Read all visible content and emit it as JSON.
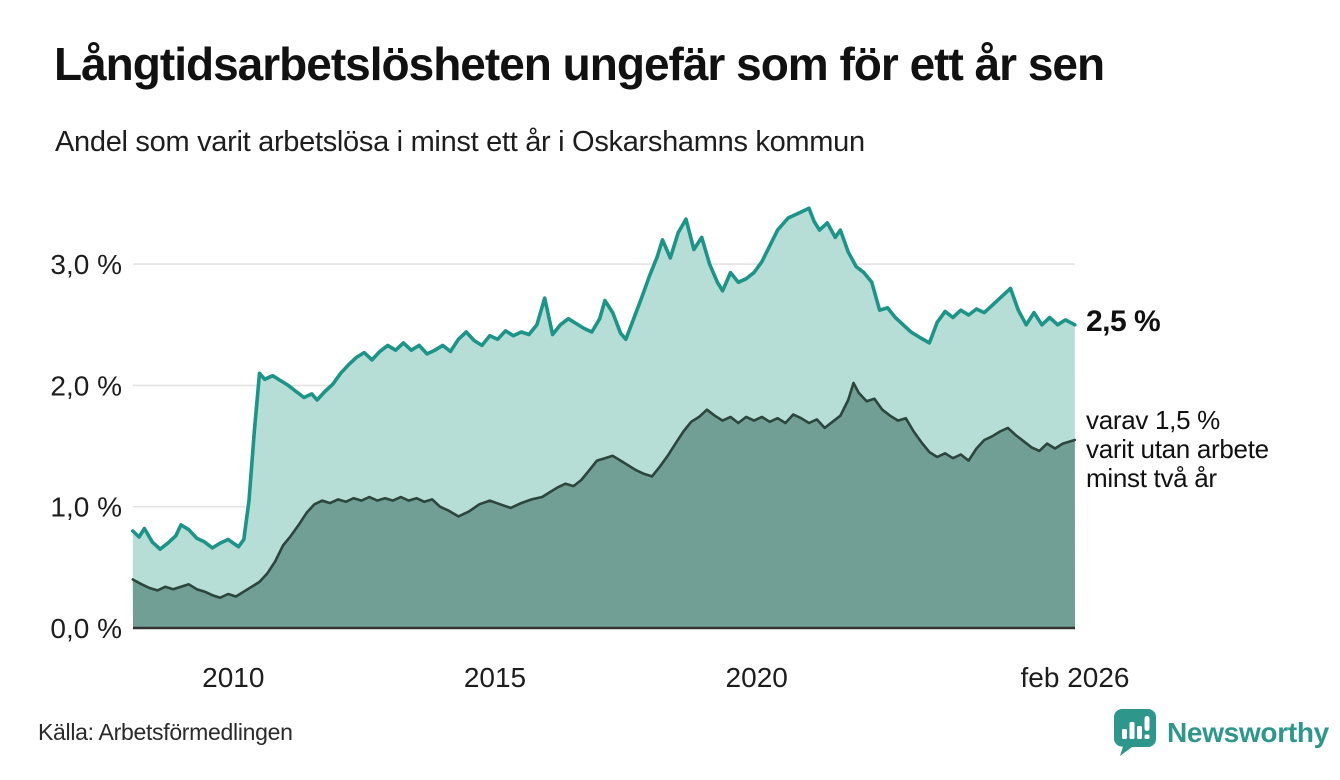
{
  "header": {
    "title": "Långtidsarbetslösheten ungefär som för ett år sen",
    "subtitle": "Andel som varit arbetslösa i minst ett år i Oskarshamns kommun"
  },
  "annotations": {
    "latest_total": "2,5 %",
    "subseries": [
      "varav 1,5 %",
      "varit utan arbete",
      "minst två år"
    ]
  },
  "footer": {
    "source": "Källa: Arbetsförmedlingen",
    "brand": "Newsworthy"
  },
  "colors": {
    "line_total": "#1e9388",
    "fill_total": "#b6ddd6",
    "line_two_years": "#2c463e",
    "fill_two_years": "#719f95",
    "gridline": "#e3e3e3",
    "axis_baseline": "#333333",
    "text": "#111111",
    "brand_teal": "#2e968b"
  },
  "chart_data": {
    "type": "area",
    "title": "Långtidsarbetslösheten ungefär som för ett år sen",
    "subtitle": "Andel som varit arbetslösa i minst ett år i Oskarshamns kommun",
    "unit": "%",
    "x_range": [
      2008.083,
      2026.083
    ],
    "ylim": [
      0,
      3.6
    ],
    "grid": true,
    "legend_position": "none",
    "yticks": [
      {
        "v": 0,
        "label": "0,0 %"
      },
      {
        "v": 1,
        "label": "1,0 %"
      },
      {
        "v": 2,
        "label": "2,0 %"
      },
      {
        "v": 3,
        "label": "3,0 %"
      }
    ],
    "xticks": [
      {
        "v": 2010,
        "label": "2010"
      },
      {
        "v": 2015,
        "label": "2015"
      },
      {
        "v": 2020,
        "label": "2020"
      },
      {
        "v": 2026.083,
        "label": "feb 2026"
      }
    ],
    "series": [
      {
        "name": "Andel som varit arbetslösa i minst ett år",
        "latest_value": 2.5,
        "latest_label": "2,5 %",
        "points": [
          [
            2008.08,
            0.8
          ],
          [
            2008.2,
            0.75
          ],
          [
            2008.3,
            0.82
          ],
          [
            2008.45,
            0.71
          ],
          [
            2008.6,
            0.65
          ],
          [
            2008.75,
            0.7
          ],
          [
            2008.9,
            0.76
          ],
          [
            2009.0,
            0.85
          ],
          [
            2009.15,
            0.81
          ],
          [
            2009.3,
            0.74
          ],
          [
            2009.45,
            0.71
          ],
          [
            2009.6,
            0.66
          ],
          [
            2009.75,
            0.7
          ],
          [
            2009.9,
            0.73
          ],
          [
            2010.0,
            0.7
          ],
          [
            2010.1,
            0.67
          ],
          [
            2010.2,
            0.73
          ],
          [
            2010.3,
            1.05
          ],
          [
            2010.4,
            1.62
          ],
          [
            2010.5,
            2.1
          ],
          [
            2010.6,
            2.05
          ],
          [
            2010.75,
            2.08
          ],
          [
            2010.9,
            2.04
          ],
          [
            2011.05,
            2.0
          ],
          [
            2011.2,
            1.95
          ],
          [
            2011.35,
            1.9
          ],
          [
            2011.5,
            1.93
          ],
          [
            2011.6,
            1.88
          ],
          [
            2011.75,
            1.95
          ],
          [
            2011.9,
            2.01
          ],
          [
            2012.05,
            2.1
          ],
          [
            2012.2,
            2.17
          ],
          [
            2012.35,
            2.23
          ],
          [
            2012.5,
            2.27
          ],
          [
            2012.65,
            2.21
          ],
          [
            2012.8,
            2.28
          ],
          [
            2012.95,
            2.33
          ],
          [
            2013.1,
            2.29
          ],
          [
            2013.25,
            2.35
          ],
          [
            2013.4,
            2.29
          ],
          [
            2013.55,
            2.33
          ],
          [
            2013.7,
            2.26
          ],
          [
            2013.85,
            2.29
          ],
          [
            2014.0,
            2.33
          ],
          [
            2014.15,
            2.28
          ],
          [
            2014.3,
            2.38
          ],
          [
            2014.45,
            2.44
          ],
          [
            2014.6,
            2.37
          ],
          [
            2014.75,
            2.33
          ],
          [
            2014.9,
            2.41
          ],
          [
            2015.05,
            2.38
          ],
          [
            2015.2,
            2.45
          ],
          [
            2015.35,
            2.41
          ],
          [
            2015.5,
            2.44
          ],
          [
            2015.65,
            2.42
          ],
          [
            2015.8,
            2.5
          ],
          [
            2015.95,
            2.72
          ],
          [
            2016.1,
            2.42
          ],
          [
            2016.25,
            2.5
          ],
          [
            2016.4,
            2.55
          ],
          [
            2016.55,
            2.51
          ],
          [
            2016.7,
            2.47
          ],
          [
            2016.85,
            2.44
          ],
          [
            2017.0,
            2.55
          ],
          [
            2017.1,
            2.7
          ],
          [
            2017.25,
            2.6
          ],
          [
            2017.4,
            2.43
          ],
          [
            2017.5,
            2.38
          ],
          [
            2017.65,
            2.55
          ],
          [
            2017.8,
            2.72
          ],
          [
            2017.95,
            2.9
          ],
          [
            2018.1,
            3.06
          ],
          [
            2018.2,
            3.2
          ],
          [
            2018.35,
            3.05
          ],
          [
            2018.5,
            3.26
          ],
          [
            2018.65,
            3.37
          ],
          [
            2018.8,
            3.12
          ],
          [
            2018.95,
            3.22
          ],
          [
            2019.1,
            3.0
          ],
          [
            2019.25,
            2.85
          ],
          [
            2019.35,
            2.78
          ],
          [
            2019.5,
            2.93
          ],
          [
            2019.65,
            2.85
          ],
          [
            2019.8,
            2.88
          ],
          [
            2019.95,
            2.93
          ],
          [
            2020.1,
            3.02
          ],
          [
            2020.25,
            3.15
          ],
          [
            2020.4,
            3.28
          ],
          [
            2020.6,
            3.38
          ],
          [
            2020.8,
            3.42
          ],
          [
            2021.0,
            3.46
          ],
          [
            2021.1,
            3.35
          ],
          [
            2021.2,
            3.28
          ],
          [
            2021.35,
            3.34
          ],
          [
            2021.5,
            3.22
          ],
          [
            2021.6,
            3.28
          ],
          [
            2021.75,
            3.1
          ],
          [
            2021.9,
            2.98
          ],
          [
            2022.05,
            2.93
          ],
          [
            2022.2,
            2.85
          ],
          [
            2022.35,
            2.62
          ],
          [
            2022.5,
            2.64
          ],
          [
            2022.65,
            2.56
          ],
          [
            2022.8,
            2.5
          ],
          [
            2022.95,
            2.44
          ],
          [
            2023.1,
            2.4
          ],
          [
            2023.3,
            2.35
          ],
          [
            2023.45,
            2.52
          ],
          [
            2023.6,
            2.61
          ],
          [
            2023.75,
            2.56
          ],
          [
            2023.9,
            2.62
          ],
          [
            2024.05,
            2.58
          ],
          [
            2024.2,
            2.63
          ],
          [
            2024.35,
            2.6
          ],
          [
            2024.5,
            2.66
          ],
          [
            2024.65,
            2.72
          ],
          [
            2024.85,
            2.8
          ],
          [
            2025.0,
            2.62
          ],
          [
            2025.15,
            2.5
          ],
          [
            2025.3,
            2.6
          ],
          [
            2025.45,
            2.5
          ],
          [
            2025.6,
            2.56
          ],
          [
            2025.75,
            2.5
          ],
          [
            2025.9,
            2.54
          ],
          [
            2026.08,
            2.5
          ]
        ]
      },
      {
        "name": "varav utan arbete minst två år",
        "latest_value": 1.5,
        "latest_label": "varav 1,5 % varit utan arbete minst två år",
        "points": [
          [
            2008.08,
            0.4
          ],
          [
            2008.25,
            0.36
          ],
          [
            2008.4,
            0.33
          ],
          [
            2008.55,
            0.31
          ],
          [
            2008.7,
            0.34
          ],
          [
            2008.85,
            0.32
          ],
          [
            2009.0,
            0.34
          ],
          [
            2009.15,
            0.36
          ],
          [
            2009.3,
            0.32
          ],
          [
            2009.45,
            0.3
          ],
          [
            2009.6,
            0.27
          ],
          [
            2009.75,
            0.25
          ],
          [
            2009.9,
            0.28
          ],
          [
            2010.05,
            0.26
          ],
          [
            2010.2,
            0.3
          ],
          [
            2010.35,
            0.34
          ],
          [
            2010.5,
            0.38
          ],
          [
            2010.65,
            0.45
          ],
          [
            2010.8,
            0.55
          ],
          [
            2010.95,
            0.68
          ],
          [
            2011.1,
            0.76
          ],
          [
            2011.25,
            0.85
          ],
          [
            2011.4,
            0.95
          ],
          [
            2011.55,
            1.02
          ],
          [
            2011.7,
            1.05
          ],
          [
            2011.85,
            1.03
          ],
          [
            2012.0,
            1.06
          ],
          [
            2012.15,
            1.04
          ],
          [
            2012.3,
            1.07
          ],
          [
            2012.45,
            1.05
          ],
          [
            2012.6,
            1.08
          ],
          [
            2012.75,
            1.05
          ],
          [
            2012.9,
            1.07
          ],
          [
            2013.05,
            1.05
          ],
          [
            2013.2,
            1.08
          ],
          [
            2013.35,
            1.05
          ],
          [
            2013.5,
            1.07
          ],
          [
            2013.65,
            1.04
          ],
          [
            2013.8,
            1.06
          ],
          [
            2013.95,
            1.0
          ],
          [
            2014.1,
            0.97
          ],
          [
            2014.3,
            0.92
          ],
          [
            2014.5,
            0.96
          ],
          [
            2014.7,
            1.02
          ],
          [
            2014.9,
            1.05
          ],
          [
            2015.1,
            1.02
          ],
          [
            2015.3,
            0.99
          ],
          [
            2015.5,
            1.03
          ],
          [
            2015.7,
            1.06
          ],
          [
            2015.9,
            1.08
          ],
          [
            2016.05,
            1.12
          ],
          [
            2016.2,
            1.16
          ],
          [
            2016.35,
            1.19
          ],
          [
            2016.5,
            1.17
          ],
          [
            2016.65,
            1.22
          ],
          [
            2016.8,
            1.3
          ],
          [
            2016.95,
            1.38
          ],
          [
            2017.1,
            1.4
          ],
          [
            2017.25,
            1.42
          ],
          [
            2017.4,
            1.38
          ],
          [
            2017.55,
            1.34
          ],
          [
            2017.7,
            1.3
          ],
          [
            2017.85,
            1.27
          ],
          [
            2018.0,
            1.25
          ],
          [
            2018.15,
            1.33
          ],
          [
            2018.3,
            1.42
          ],
          [
            2018.45,
            1.52
          ],
          [
            2018.6,
            1.62
          ],
          [
            2018.75,
            1.7
          ],
          [
            2018.9,
            1.74
          ],
          [
            2019.05,
            1.8
          ],
          [
            2019.2,
            1.75
          ],
          [
            2019.35,
            1.71
          ],
          [
            2019.5,
            1.74
          ],
          [
            2019.65,
            1.69
          ],
          [
            2019.8,
            1.74
          ],
          [
            2019.95,
            1.71
          ],
          [
            2020.1,
            1.74
          ],
          [
            2020.25,
            1.7
          ],
          [
            2020.4,
            1.73
          ],
          [
            2020.55,
            1.69
          ],
          [
            2020.7,
            1.76
          ],
          [
            2020.85,
            1.73
          ],
          [
            2021.0,
            1.69
          ],
          [
            2021.15,
            1.72
          ],
          [
            2021.3,
            1.65
          ],
          [
            2021.45,
            1.7
          ],
          [
            2021.6,
            1.75
          ],
          [
            2021.75,
            1.88
          ],
          [
            2021.85,
            2.02
          ],
          [
            2021.95,
            1.94
          ],
          [
            2022.1,
            1.87
          ],
          [
            2022.25,
            1.89
          ],
          [
            2022.4,
            1.8
          ],
          [
            2022.55,
            1.75
          ],
          [
            2022.7,
            1.71
          ],
          [
            2022.85,
            1.73
          ],
          [
            2023.0,
            1.62
          ],
          [
            2023.15,
            1.53
          ],
          [
            2023.3,
            1.45
          ],
          [
            2023.45,
            1.41
          ],
          [
            2023.6,
            1.44
          ],
          [
            2023.75,
            1.4
          ],
          [
            2023.9,
            1.43
          ],
          [
            2024.05,
            1.38
          ],
          [
            2024.2,
            1.48
          ],
          [
            2024.35,
            1.55
          ],
          [
            2024.5,
            1.58
          ],
          [
            2024.65,
            1.62
          ],
          [
            2024.8,
            1.65
          ],
          [
            2024.95,
            1.59
          ],
          [
            2025.1,
            1.54
          ],
          [
            2025.25,
            1.49
          ],
          [
            2025.4,
            1.46
          ],
          [
            2025.55,
            1.52
          ],
          [
            2025.7,
            1.48
          ],
          [
            2025.85,
            1.52
          ],
          [
            2026.08,
            1.55
          ]
        ]
      }
    ]
  }
}
